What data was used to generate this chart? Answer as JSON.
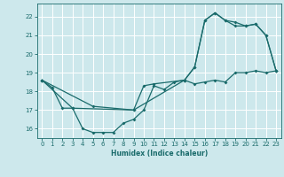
{
  "xlabel": "Humidex (Indice chaleur)",
  "bg_color": "#cde8ec",
  "line_color": "#1a6b6b",
  "grid_color": "#ffffff",
  "xlim": [
    -0.5,
    23.5
  ],
  "ylim": [
    15.5,
    22.7
  ],
  "yticks": [
    16,
    17,
    18,
    19,
    20,
    21,
    22
  ],
  "xticks": [
    0,
    1,
    2,
    3,
    4,
    5,
    6,
    7,
    8,
    9,
    10,
    11,
    12,
    13,
    14,
    15,
    16,
    17,
    18,
    19,
    20,
    21,
    22,
    23
  ],
  "line1_x": [
    0,
    1,
    2,
    3,
    4,
    5,
    6,
    7,
    8,
    9,
    10,
    11,
    12,
    13,
    14,
    15,
    16,
    17,
    18,
    19,
    20,
    21,
    22,
    23
  ],
  "line1_y": [
    18.6,
    18.2,
    17.1,
    17.1,
    16.0,
    15.8,
    15.8,
    15.8,
    16.3,
    16.5,
    17.0,
    18.3,
    18.1,
    18.5,
    18.6,
    18.4,
    18.5,
    18.6,
    18.5,
    19.0,
    19.0,
    19.1,
    19.0,
    19.1
  ],
  "line2_x": [
    0,
    3,
    9,
    14,
    15,
    16,
    17,
    18,
    19,
    20,
    21,
    22,
    23
  ],
  "line2_y": [
    18.6,
    17.1,
    17.0,
    18.6,
    19.3,
    21.8,
    22.2,
    21.8,
    21.5,
    21.5,
    21.6,
    21.0,
    19.1
  ],
  "line3_x": [
    0,
    5,
    9,
    10,
    11,
    14,
    15,
    16,
    17,
    18,
    19,
    20,
    21,
    22,
    23
  ],
  "line3_y": [
    18.6,
    17.2,
    17.0,
    18.3,
    18.4,
    18.6,
    19.3,
    21.8,
    22.2,
    21.8,
    21.7,
    21.5,
    21.6,
    21.0,
    19.1
  ]
}
